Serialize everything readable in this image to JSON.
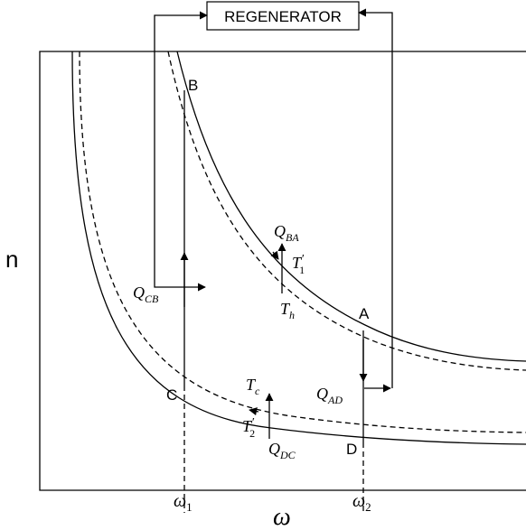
{
  "regenerator": {
    "label": "REGENERATOR"
  },
  "axes": {
    "y_label": "n",
    "x_label": "ω",
    "x_ticks": [
      {
        "base": "ω",
        "sub": "1"
      },
      {
        "base": "ω",
        "sub": "2"
      }
    ]
  },
  "points": {
    "A": "A",
    "B": "B",
    "C": "C",
    "D": "D"
  },
  "heat_labels": {
    "QBA": {
      "base": "Q",
      "sub": "BA"
    },
    "QCB": {
      "base": "Q",
      "sub": "CB"
    },
    "QAD": {
      "base": "Q",
      "sub": "AD"
    },
    "QDC": {
      "base": "Q",
      "sub": "DC"
    }
  },
  "temperature_labels": {
    "T1p": {
      "base": "T",
      "prime": "′",
      "sub": "1"
    },
    "Th": {
      "base": "T",
      "sub": "h"
    },
    "Tc": {
      "base": "T",
      "sub": "c"
    },
    "T2p": {
      "base": "T",
      "prime": "′",
      "sub": "2"
    }
  },
  "colors": {
    "stroke": "#000000",
    "background": "#ffffff"
  }
}
